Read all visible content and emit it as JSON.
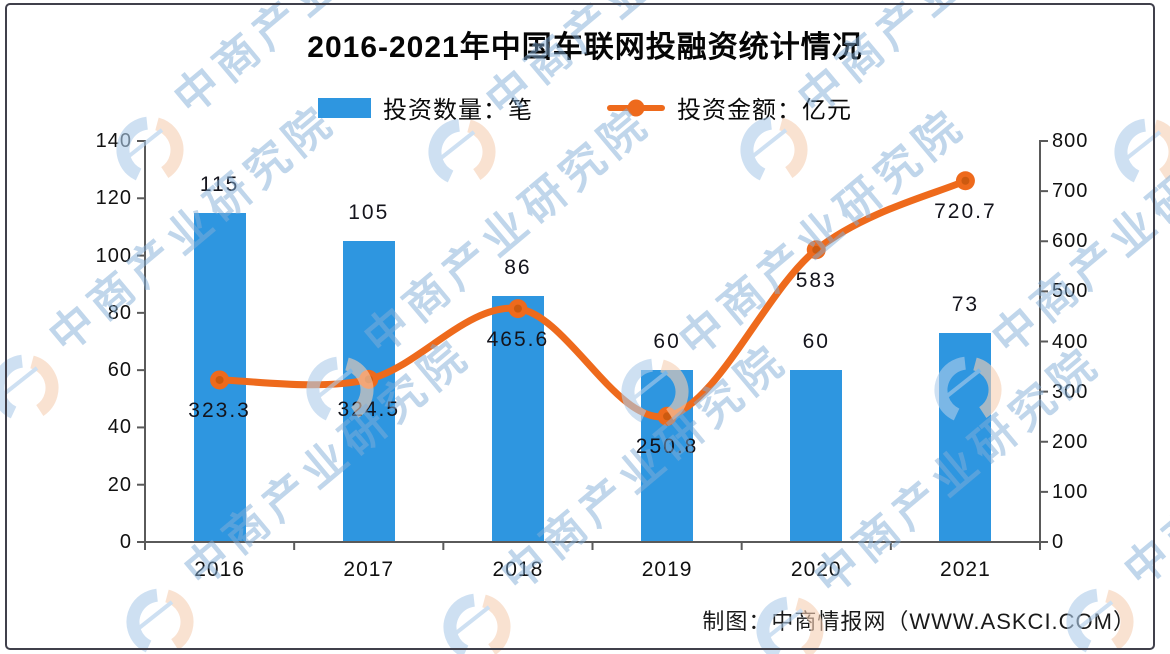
{
  "title": "2016-2021年中国车联网投融资统计情况",
  "legend": {
    "bar_label": "投资数量：笔",
    "line_label": "投资金额：亿元"
  },
  "attribution": "制图：中商情报网（WWW.ASKCI.COM）",
  "watermark": {
    "text": "中商产业研究院"
  },
  "colors": {
    "bar": "#2E96E0",
    "line": "#EE6A1C",
    "line_marker_core": "#CC5A10",
    "axis": "#5a5a5a",
    "watermark_blue": "#AECDEB",
    "watermark_peach": "#F6CFB4"
  },
  "chart_data": {
    "type": "combo",
    "subtype": [
      "bar",
      "line"
    ],
    "title": "2016-2021年中国车联网投融资统计情况",
    "categories": [
      "2016",
      "2017",
      "2018",
      "2019",
      "2020",
      "2021"
    ],
    "series": [
      {
        "name": "投资数量：笔",
        "type": "bar",
        "axis": "left",
        "values": [
          115,
          105,
          86,
          60,
          60,
          73
        ]
      },
      {
        "name": "投资金额：亿元",
        "type": "line",
        "axis": "right",
        "values": [
          323.3,
          324.5,
          465.6,
          250.8,
          583,
          720.7
        ]
      }
    ],
    "left_axis": {
      "min": 0,
      "max": 140,
      "ticks": [
        0,
        20,
        40,
        60,
        80,
        100,
        120,
        140
      ]
    },
    "right_axis": {
      "min": 0,
      "max": 800,
      "ticks": [
        0,
        100,
        200,
        300,
        400,
        500,
        600,
        700,
        800
      ]
    },
    "grid": false,
    "legend_position": "top"
  }
}
